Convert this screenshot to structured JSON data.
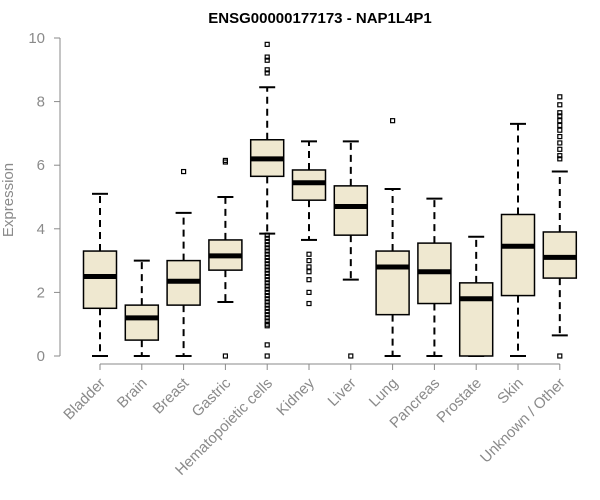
{
  "chart_data": {
    "type": "boxplot",
    "title": "ENSG00000177173 - NAP1L4P1",
    "xlabel": "",
    "ylabel": "Expression",
    "ylim": [
      0,
      10
    ],
    "yticks": [
      0,
      2,
      4,
      6,
      8,
      10
    ],
    "grid": false,
    "colors": {
      "box_fill": "#efe8d0",
      "stroke": "#000000",
      "axis": "#8a8a8a"
    },
    "categories": [
      "Bladder",
      "Brain",
      "Breast",
      "Gastric",
      "Hematopoietic cells",
      "Kidney",
      "Liver",
      "Lung",
      "Pancreas",
      "Prostate",
      "Skin",
      "Unknown / Other"
    ],
    "boxes": [
      {
        "name": "Bladder",
        "whisker_low": 0,
        "q1": 1.5,
        "median": 2.5,
        "q3": 3.3,
        "whisker_high": 5.1,
        "outliers": []
      },
      {
        "name": "Brain",
        "whisker_low": 0,
        "q1": 0.5,
        "median": 1.2,
        "q3": 1.6,
        "whisker_high": 3.0,
        "outliers": []
      },
      {
        "name": "Breast",
        "whisker_low": 0,
        "q1": 1.6,
        "median": 2.35,
        "q3": 3.0,
        "whisker_high": 4.5,
        "outliers": [
          5.8
        ]
      },
      {
        "name": "Gastric",
        "whisker_low": 1.7,
        "q1": 2.7,
        "median": 3.15,
        "q3": 3.65,
        "whisker_high": 5.0,
        "outliers": [
          0,
          6.1,
          6.15
        ]
      },
      {
        "name": "Hematopoietic cells",
        "whisker_low": 3.85,
        "q1": 5.65,
        "median": 6.2,
        "q3": 6.8,
        "whisker_high": 8.45,
        "outliers": [
          0,
          0.35,
          0.95,
          1.0,
          1.1,
          1.2,
          1.3,
          1.4,
          1.5,
          1.6,
          1.7,
          1.8,
          1.9,
          2.0,
          2.1,
          2.2,
          2.3,
          2.4,
          2.5,
          2.6,
          2.7,
          2.8,
          2.9,
          3.0,
          3.1,
          3.2,
          3.3,
          3.4,
          3.5,
          3.6,
          3.7,
          3.8,
          8.9,
          9.0,
          9.3,
          9.4,
          9.8
        ]
      },
      {
        "name": "Kidney",
        "whisker_low": 3.65,
        "q1": 4.9,
        "median": 5.45,
        "q3": 5.85,
        "whisker_high": 6.75,
        "outliers": [
          1.65,
          2.0,
          2.4,
          2.65,
          2.8,
          3.0,
          3.2
        ]
      },
      {
        "name": "Liver",
        "whisker_low": 2.4,
        "q1": 3.8,
        "median": 4.7,
        "q3": 5.35,
        "whisker_high": 6.75,
        "outliers": [
          0
        ]
      },
      {
        "name": "Lung",
        "whisker_low": 0,
        "q1": 1.3,
        "median": 2.8,
        "q3": 3.3,
        "whisker_high": 5.25,
        "outliers": [
          7.4
        ]
      },
      {
        "name": "Pancreas",
        "whisker_low": 0,
        "q1": 1.65,
        "median": 2.65,
        "q3": 3.55,
        "whisker_high": 4.95,
        "outliers": []
      },
      {
        "name": "Prostate",
        "whisker_low": 0,
        "q1": 0,
        "median": 1.8,
        "q3": 2.3,
        "whisker_high": 3.75,
        "outliers": []
      },
      {
        "name": "Skin",
        "whisker_low": 0,
        "q1": 1.9,
        "median": 3.45,
        "q3": 4.45,
        "whisker_high": 7.3,
        "outliers": []
      },
      {
        "name": "Unknown / Other",
        "whisker_low": 0.65,
        "q1": 2.45,
        "median": 3.1,
        "q3": 3.9,
        "whisker_high": 5.8,
        "outliers": [
          0,
          6.2,
          6.3,
          6.5,
          6.7,
          6.9,
          7.1,
          7.25,
          7.4,
          7.55,
          7.65,
          7.9,
          8.15
        ]
      }
    ]
  }
}
